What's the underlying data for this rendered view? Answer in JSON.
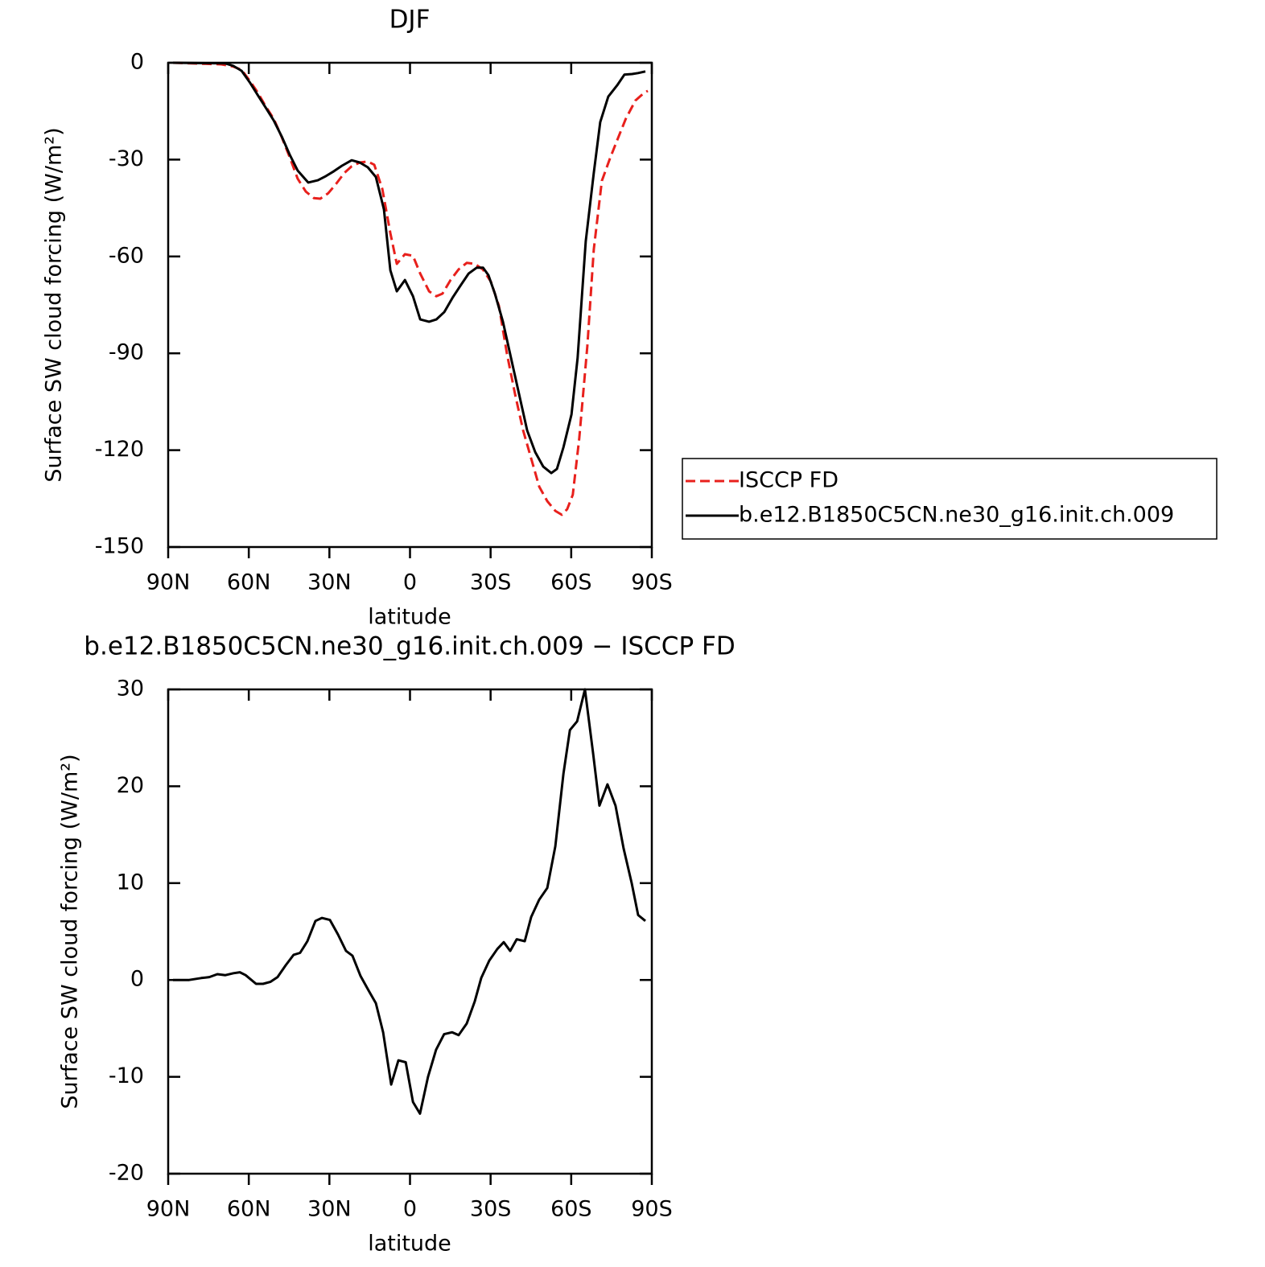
{
  "chart_data": [
    {
      "type": "line",
      "title": "DJF",
      "x_label": "latitude",
      "y_label": "Surface SW cloud forcing (W/m²)",
      "xlim": [
        90,
        -90
      ],
      "xticks": [
        {
          "value": 90,
          "label": "90N"
        },
        {
          "value": 60,
          "label": "60N"
        },
        {
          "value": 30,
          "label": "30N"
        },
        0,
        {
          "value": -30,
          "label": "30S"
        },
        {
          "value": -60,
          "label": "60S"
        },
        {
          "value": -90,
          "label": "90S"
        }
      ],
      "ylim": [
        -150,
        0
      ],
      "yticks": [
        0,
        -30,
        -60,
        -90,
        -120,
        -150
      ],
      "legend": "right",
      "series": [
        {
          "name": "ISCCP FD",
          "color": "#e8201c",
          "dash": true,
          "x": [
            88.2,
            70.2,
            65.7,
            62.7,
            59.7,
            56.7,
            53.7,
            50.7,
            47.8,
            44.8,
            41.8,
            38.8,
            35.8,
            33.4,
            30.4,
            27.4,
            24.4,
            21.7,
            18.7,
            15.7,
            13.3,
            10.3,
            7.3,
            4.9,
            1.9,
            -1.1,
            -3.8,
            -7.1,
            -9.8,
            -12.1,
            -15.1,
            -18.1,
            -21.1,
            -24.1,
            -27.1,
            -30.1,
            -33.1,
            -36.1,
            -39.1,
            -42.1,
            -45.1,
            -48.1,
            -51.1,
            -54.1,
            -56.5,
            -58.5,
            -60.6,
            -63,
            -66,
            -68.4,
            -71.4,
            -74.4,
            -77.4,
            -80.3,
            -83.9,
            -86.9,
            -88.5
          ],
          "values": [
            0,
            -0.5,
            -1.2,
            -2.2,
            -5.5,
            -9.2,
            -13.5,
            -17.4,
            -22.9,
            -29.2,
            -35.9,
            -39.9,
            -41.9,
            -42.1,
            -40.4,
            -37.4,
            -34.1,
            -32.1,
            -30.9,
            -30.6,
            -31.6,
            -39.1,
            -52.8,
            -62.3,
            -59.3,
            -59.8,
            -65.3,
            -70.8,
            -72.3,
            -71.5,
            -67.3,
            -64,
            -62,
            -62.3,
            -64,
            -67.8,
            -75.3,
            -90.2,
            -102.7,
            -113.9,
            -122.6,
            -131.3,
            -135.8,
            -138.8,
            -140,
            -138.3,
            -133.8,
            -116.4,
            -87.7,
            -57.8,
            -36.6,
            -29.7,
            -23.4,
            -17.4,
            -11.7,
            -9.5,
            -8.7
          ]
        },
        {
          "name": "b.e12.B1850C5CN.ne30_g16.init.ch.009",
          "color": "#000000",
          "x": [
            88.2,
            68.7,
            65.7,
            62.7,
            59.7,
            56.7,
            53.7,
            50.7,
            47.7,
            44.8,
            41.8,
            37.9,
            34.3,
            31.3,
            28.3,
            25.3,
            21.7,
            18.7,
            15.7,
            12.7,
            9.7,
            7.3,
            4.9,
            1.9,
            -1.1,
            -3.8,
            -7.1,
            -9.8,
            -12.8,
            -15.8,
            -18.8,
            -21.8,
            -24.8,
            -27.2,
            -29.2,
            -31.6,
            -34.6,
            -37.6,
            -40.6,
            -43.6,
            -46.6,
            -49.6,
            -52.6,
            -54.7,
            -57.1,
            -60.1,
            -62.4,
            -65.4,
            -68.4,
            -70.8,
            -73.8,
            -77.1,
            -79.8,
            -82.7,
            -84.9,
            -87.6
          ],
          "values": [
            0,
            -0.2,
            -1,
            -2.5,
            -6,
            -10,
            -13.9,
            -17.9,
            -22.9,
            -28.4,
            -33.4,
            -37.1,
            -36.4,
            -35.1,
            -33.6,
            -31.9,
            -30.2,
            -30.9,
            -32.4,
            -35.4,
            -45.4,
            -64.3,
            -70.8,
            -67.3,
            -72.3,
            -79.5,
            -80.2,
            -79.5,
            -77.2,
            -72.8,
            -69,
            -65.3,
            -63.5,
            -63.5,
            -65.8,
            -71.5,
            -80.2,
            -91.4,
            -102.7,
            -113.9,
            -120.6,
            -125.1,
            -127.1,
            -125.8,
            -119.1,
            -108.9,
            -91.4,
            -55.3,
            -34.1,
            -18.4,
            -10.5,
            -7,
            -3.7,
            -3.5,
            -3.2,
            -2.7
          ]
        }
      ]
    },
    {
      "type": "line",
      "title": "b.e12.B1850C5CN.ne30_g16.init.ch.009 − ISCCP FD",
      "x_label": "latitude",
      "y_label": "Surface SW cloud forcing (W/m²)",
      "xlim": [
        90,
        -90
      ],
      "xticks": [
        {
          "value": 90,
          "label": "90N"
        },
        {
          "value": 60,
          "label": "60N"
        },
        {
          "value": 30,
          "label": "30N"
        },
        0,
        {
          "value": -30,
          "label": "30S"
        },
        {
          "value": -60,
          "label": "60S"
        },
        {
          "value": -90,
          "label": "90S"
        }
      ],
      "ylim": [
        -20,
        30
      ],
      "yticks": [
        30,
        20,
        10,
        0,
        -10,
        -20
      ],
      "series": [
        {
          "color": "#000000",
          "x": [
            88.2,
            82.2,
            77.7,
            74.7,
            71.7,
            68.7,
            65.7,
            63.3,
            61.2,
            57.3,
            54.7,
            52.0,
            49.3,
            46.3,
            43.3,
            40.9,
            38.2,
            35.2,
            32.8,
            29.8,
            26.8,
            23.8,
            21.4,
            18.4,
            15.4,
            12.7,
            10.0,
            7.0,
            4.3,
            1.6,
            -1.1,
            -3.7,
            -6.7,
            -9.7,
            -12.7,
            -15.7,
            -18.1,
            -21.1,
            -24.1,
            -26.5,
            -29.5,
            -32.5,
            -34.9,
            -37.3,
            -39.7,
            -42.7,
            -45.1,
            -48.1,
            -51.1,
            -54.1,
            -57.1,
            -59.5,
            -62.2,
            -65.1,
            -68.1,
            -70.5,
            -73.5,
            -76.5,
            -79.5,
            -82.5,
            -84.9,
            -87.6
          ],
          "values": [
            0.0,
            0.0,
            0.2,
            0.3,
            0.6,
            0.5,
            0.7,
            0.8,
            0.5,
            -0.4,
            -0.4,
            -0.2,
            0.3,
            1.5,
            2.6,
            2.8,
            4.0,
            6.1,
            6.4,
            6.2,
            4.7,
            3.0,
            2.5,
            0.4,
            -1.1,
            -2.4,
            -5.4,
            -10.8,
            -8.3,
            -8.5,
            -12.6,
            -13.8,
            -10.0,
            -7.2,
            -5.6,
            -5.4,
            -5.7,
            -4.5,
            -2.2,
            0.2,
            2.0,
            3.2,
            3.9,
            3.0,
            4.2,
            4.0,
            6.5,
            8.3,
            9.5,
            13.8,
            21.3,
            25.8,
            26.7,
            30,
            23.5,
            18,
            20.2,
            18,
            13.6,
            10.0,
            6.7,
            6.1
          ]
        }
      ]
    }
  ]
}
